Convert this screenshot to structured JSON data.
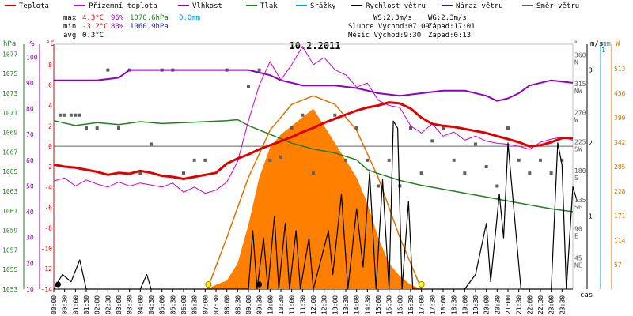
{
  "chart_data": {
    "type": "line",
    "title": "10.2.2011",
    "legend": [
      {
        "name": "Teplota",
        "color": "#e00000"
      },
      {
        "name": "Přízemní teplota",
        "color": "#d000d0"
      },
      {
        "name": "Vlhkost",
        "color": "#9000c0"
      },
      {
        "name": "Tlak",
        "color": "#208020"
      },
      {
        "name": "Srážky",
        "color": "#00a0d0"
      },
      {
        "name": "Rychlost větru",
        "color": "#000000"
      },
      {
        "name": "Náraz větru",
        "color": "#2020a0"
      },
      {
        "name": "Směr větru",
        "color": "#606060"
      }
    ],
    "stats": {
      "max_label": "max",
      "min_label": "min",
      "avg_label": "avg",
      "max_temp": "4.3°C",
      "max_hum": "96%",
      "max_press": "1070.6hPa",
      "max_rain": "0.0mm",
      "min_temp": "-3.2°C",
      "min_hum": "83%",
      "min_press": "1060.9hPa",
      "avg_temp": "0.3°C",
      "ws": "WS:2.3m/s",
      "wg": "WG:2.3m/s",
      "sun": "Slunce Východ:07:09",
      "sun_set": "Západ:17:01",
      "moon": "Měsíc  Východ:9:30",
      "moon_set": "Západ:0:13"
    },
    "axes": {
      "hpa_label": "hPa",
      "pct_label": "%",
      "degc_label": "°C",
      "deg_label": "°",
      "ms_label": "m/s",
      "mm_label": "mm",
      "w_label": "W",
      "x_label": "čas",
      "hpa_ticks": [
        "1077",
        "1075",
        "1073",
        "1071",
        "1069",
        "1067",
        "1065",
        "1063",
        "1061",
        "1059",
        "1057",
        "1055",
        "1053"
      ],
      "pct_ticks": [
        "100",
        "90",
        "80",
        "70",
        "60",
        "50",
        "40",
        "30",
        "20",
        "10"
      ],
      "degc_ticks": [
        "8",
        "6",
        "4",
        "2",
        "0",
        "-2",
        "-4",
        "-6",
        "-8",
        "-10",
        "-12",
        "-14"
      ],
      "dir_ticks": [
        {
          "deg": "360",
          "dir": "N"
        },
        {
          "deg": "315",
          "dir": "NW"
        },
        {
          "deg": "270",
          "dir": "W"
        },
        {
          "deg": "225",
          "dir": "SW"
        },
        {
          "deg": "180",
          "dir": "S"
        },
        {
          "deg": "135",
          "dir": "SE"
        },
        {
          "deg": "90",
          "dir": "E"
        },
        {
          "deg": "45",
          "dir": "NE"
        }
      ],
      "ms_ticks": [
        "3",
        "2",
        "1"
      ],
      "mm_ticks": [
        "1"
      ],
      "w_ticks": [
        "513",
        "456",
        "399",
        "342",
        "285",
        "228",
        "171",
        "114",
        "57"
      ],
      "time_ticks": [
        "00:00",
        "00:30",
        "01:00",
        "01:30",
        "02:00",
        "02:30",
        "03:00",
        "03:30",
        "04:00",
        "04:30",
        "05:00",
        "05:30",
        "06:00",
        "06:30",
        "07:00",
        "07:30",
        "08:00",
        "08:30",
        "09:00",
        "09:30",
        "10:00",
        "10:30",
        "11:00",
        "11:30",
        "12:00",
        "12:30",
        "13:00",
        "13:30",
        "14:00",
        "14:30",
        "15:00",
        "15:30",
        "16:00",
        "16:30",
        "17:00",
        "17:30",
        "18:00",
        "18:30",
        "19:00",
        "19:30",
        "20:00",
        "20:30",
        "21:00",
        "21:30",
        "22:00",
        "22:30",
        "23:00",
        "23:30"
      ],
      "temp_range": [
        -14,
        10
      ],
      "hum_range": [
        10,
        105
      ],
      "press_range": [
        1053,
        1078
      ],
      "wind_range": [
        0,
        3.35
      ],
      "solar_range": [
        0,
        570
      ]
    },
    "temperature": [
      [
        0,
        -1.8
      ],
      [
        0.5,
        -2
      ],
      [
        1,
        -2.1
      ],
      [
        1.5,
        -2.3
      ],
      [
        2,
        -2.5
      ],
      [
        2.5,
        -2.8
      ],
      [
        3,
        -2.6
      ],
      [
        3.5,
        -2.7
      ],
      [
        4,
        -2.4
      ],
      [
        4.5,
        -2.6
      ],
      [
        5,
        -2.9
      ],
      [
        5.5,
        -3.0
      ],
      [
        6,
        -3.2
      ],
      [
        6.5,
        -3.0
      ],
      [
        7,
        -2.8
      ],
      [
        7.5,
        -2.6
      ],
      [
        8,
        -1.7
      ],
      [
        8.5,
        -1.2
      ],
      [
        9,
        -0.8
      ],
      [
        9.5,
        -0.3
      ],
      [
        10,
        0.1
      ],
      [
        10.5,
        0.5
      ],
      [
        11,
        0.9
      ],
      [
        11.5,
        1.4
      ],
      [
        12,
        1.8
      ],
      [
        12.5,
        2.3
      ],
      [
        13,
        2.7
      ],
      [
        13.5,
        3.1
      ],
      [
        14,
        3.5
      ],
      [
        14.5,
        3.8
      ],
      [
        15,
        4.0
      ],
      [
        15.5,
        4.3
      ],
      [
        16,
        4.2
      ],
      [
        16.5,
        3.7
      ],
      [
        17,
        2.8
      ],
      [
        17.5,
        2.2
      ],
      [
        18,
        2.0
      ],
      [
        18.5,
        1.9
      ],
      [
        19,
        1.7
      ],
      [
        19.5,
        1.5
      ],
      [
        20,
        1.3
      ],
      [
        20.5,
        1.0
      ],
      [
        21,
        0.7
      ],
      [
        21.5,
        0.4
      ],
      [
        22,
        0.0
      ],
      [
        22.5,
        0.1
      ],
      [
        23,
        0.4
      ],
      [
        23.5,
        0.8
      ],
      [
        24,
        0.8
      ]
    ],
    "ground_temperature": [
      [
        0,
        -3.4
      ],
      [
        0.5,
        -3.1
      ],
      [
        1,
        -3.9
      ],
      [
        1.5,
        -3.3
      ],
      [
        2,
        -3.7
      ],
      [
        2.5,
        -4.0
      ],
      [
        3,
        -3.5
      ],
      [
        3.5,
        -3.9
      ],
      [
        4,
        -3.6
      ],
      [
        4.5,
        -3.8
      ],
      [
        5,
        -4.0
      ],
      [
        5.5,
        -3.6
      ],
      [
        6,
        -4.5
      ],
      [
        6.5,
        -4.0
      ],
      [
        7,
        -4.6
      ],
      [
        7.5,
        -4.3
      ],
      [
        8,
        -3.5
      ],
      [
        8.5,
        -1.5
      ],
      [
        9,
        2.5
      ],
      [
        9.5,
        6.0
      ],
      [
        10,
        8.3
      ],
      [
        10.5,
        6.5
      ],
      [
        11,
        8.0
      ],
      [
        11.5,
        9.8
      ],
      [
        12,
        8.0
      ],
      [
        12.5,
        8.7
      ],
      [
        13,
        7.5
      ],
      [
        13.5,
        7.0
      ],
      [
        14,
        5.8
      ],
      [
        14.5,
        6.2
      ],
      [
        15,
        4.5
      ],
      [
        15.5,
        4.0
      ],
      [
        16,
        3.8
      ],
      [
        16.5,
        2.0
      ],
      [
        17,
        1.3
      ],
      [
        17.5,
        2.2
      ],
      [
        18,
        1.0
      ],
      [
        18.5,
        1.4
      ],
      [
        19,
        0.6
      ],
      [
        19.5,
        1.0
      ],
      [
        20,
        0.5
      ],
      [
        20.5,
        0.3
      ],
      [
        21,
        0.2
      ],
      [
        21.5,
        0.0
      ],
      [
        22,
        -0.3
      ],
      [
        22.5,
        0.4
      ],
      [
        23,
        0.7
      ],
      [
        23.5,
        0.9
      ],
      [
        24,
        0.6
      ]
    ],
    "humidity": [
      [
        0,
        91
      ],
      [
        1,
        91
      ],
      [
        2,
        91
      ],
      [
        3,
        92
      ],
      [
        3.5,
        95
      ],
      [
        4,
        95
      ],
      [
        5,
        95
      ],
      [
        6,
        95
      ],
      [
        7,
        95
      ],
      [
        8,
        95
      ],
      [
        9,
        95
      ],
      [
        9.5,
        94
      ],
      [
        10,
        93
      ],
      [
        10.5,
        91
      ],
      [
        11,
        90
      ],
      [
        11.5,
        89
      ],
      [
        12,
        89
      ],
      [
        13,
        89
      ],
      [
        14,
        88
      ],
      [
        15,
        86
      ],
      [
        16,
        85
      ],
      [
        17,
        86
      ],
      [
        18,
        87
      ],
      [
        19,
        87
      ],
      [
        20,
        85
      ],
      [
        20.5,
        83
      ],
      [
        21,
        84
      ],
      [
        21.5,
        86
      ],
      [
        22,
        89
      ],
      [
        23,
        91
      ],
      [
        24,
        90
      ]
    ],
    "pressure": [
      [
        0,
        1070.2
      ],
      [
        1,
        1069.7
      ],
      [
        2,
        1070.0
      ],
      [
        3,
        1069.8
      ],
      [
        4,
        1070.1
      ],
      [
        5,
        1069.9
      ],
      [
        6,
        1070.0
      ],
      [
        7,
        1070.1
      ],
      [
        8,
        1070.2
      ],
      [
        8.5,
        1070.3
      ],
      [
        9,
        1069.7
      ],
      [
        10,
        1068.8
      ],
      [
        11,
        1067.9
      ],
      [
        12,
        1067.3
      ],
      [
        13,
        1066.9
      ],
      [
        14,
        1066.2
      ],
      [
        14.5,
        1065.2
      ],
      [
        15,
        1064.8
      ],
      [
        16,
        1064.1
      ],
      [
        17,
        1063.6
      ],
      [
        18,
        1063.2
      ],
      [
        19,
        1062.8
      ],
      [
        20,
        1062.4
      ],
      [
        21,
        1062.0
      ],
      [
        22,
        1061.6
      ],
      [
        23,
        1061.2
      ],
      [
        24,
        1060.9
      ]
    ],
    "wind_speed": [
      [
        0,
        0
      ],
      [
        0.4,
        0.2
      ],
      [
        0.8,
        0.1
      ],
      [
        1.2,
        0.4
      ],
      [
        1.5,
        0
      ],
      [
        4,
        0
      ],
      [
        4.3,
        0.2
      ],
      [
        4.5,
        0
      ],
      [
        9,
        0
      ],
      [
        9.2,
        0.8
      ],
      [
        9.4,
        0
      ],
      [
        9.7,
        0.7
      ],
      [
        9.9,
        0
      ],
      [
        10.2,
        1.0
      ],
      [
        10.4,
        0
      ],
      [
        10.7,
        0.9
      ],
      [
        10.9,
        0
      ],
      [
        11.2,
        0.8
      ],
      [
        11.4,
        0
      ],
      [
        11.8,
        0.7
      ],
      [
        12,
        0
      ],
      [
        12.7,
        0.8
      ],
      [
        12.9,
        0.2
      ],
      [
        13.3,
        1.3
      ],
      [
        13.6,
        0
      ],
      [
        14,
        1.1
      ],
      [
        14.3,
        0.3
      ],
      [
        14.6,
        1.6
      ],
      [
        14.9,
        0
      ],
      [
        15.2,
        1.5
      ],
      [
        15.5,
        0
      ],
      [
        15.7,
        2.3
      ],
      [
        15.9,
        2.2
      ],
      [
        16.1,
        0
      ],
      [
        16.4,
        1.2
      ],
      [
        16.6,
        0
      ],
      [
        19,
        0
      ],
      [
        19.5,
        0.2
      ],
      [
        20,
        0.9
      ],
      [
        20.2,
        0.1
      ],
      [
        20.6,
        1.3
      ],
      [
        20.8,
        0.7
      ],
      [
        21,
        2.0
      ],
      [
        21.3,
        1.0
      ],
      [
        21.6,
        0
      ],
      [
        23,
        0
      ],
      [
        23.3,
        2.0
      ],
      [
        23.5,
        1.7
      ],
      [
        23.7,
        0
      ],
      [
        24,
        1.4
      ],
      [
        24.2,
        1.2
      ]
    ],
    "wind_direction": [
      [
        0.3,
        270
      ],
      [
        0.5,
        270
      ],
      [
        0.8,
        270
      ],
      [
        1.0,
        270
      ],
      [
        1.2,
        270
      ],
      [
        1.5,
        250
      ],
      [
        2.0,
        250
      ],
      [
        2.5,
        340
      ],
      [
        3.0,
        250
      ],
      [
        3.5,
        340
      ],
      [
        4.0,
        180
      ],
      [
        4.5,
        225
      ],
      [
        5.0,
        340
      ],
      [
        5.5,
        340
      ],
      [
        6.0,
        180
      ],
      [
        6.5,
        200
      ],
      [
        7.0,
        200
      ],
      [
        8.0,
        340
      ],
      [
        9.0,
        315
      ],
      [
        9.5,
        340
      ],
      [
        10.0,
        200
      ],
      [
        10.5,
        205
      ],
      [
        11.0,
        250
      ],
      [
        11.5,
        270
      ],
      [
        12.0,
        180
      ],
      [
        13.0,
        270
      ],
      [
        13.5,
        200
      ],
      [
        14.0,
        250
      ],
      [
        14.5,
        200
      ],
      [
        15.0,
        160
      ],
      [
        15.5,
        200
      ],
      [
        16.0,
        160
      ],
      [
        16.5,
        250
      ],
      [
        17.0,
        180
      ],
      [
        17.5,
        230
      ],
      [
        18.0,
        250
      ],
      [
        18.5,
        200
      ],
      [
        19.0,
        180
      ],
      [
        19.5,
        225
      ],
      [
        20.0,
        190
      ],
      [
        20.5,
        160
      ],
      [
        21.0,
        250
      ],
      [
        21.5,
        200
      ],
      [
        22.0,
        180
      ],
      [
        22.5,
        200
      ],
      [
        23.0,
        180
      ],
      [
        23.5,
        200
      ]
    ],
    "solar_radiation": [
      [
        7.1,
        0
      ],
      [
        7.5,
        10
      ],
      [
        8,
        20
      ],
      [
        8.5,
        60
      ],
      [
        9,
        150
      ],
      [
        9.5,
        260
      ],
      [
        10,
        330
      ],
      [
        10.5,
        360
      ],
      [
        11,
        380
      ],
      [
        11.5,
        400
      ],
      [
        12,
        420
      ],
      [
        12.5,
        380
      ],
      [
        13,
        340
      ],
      [
        13.5,
        300
      ],
      [
        14,
        260
      ],
      [
        14.5,
        200
      ],
      [
        15,
        120
      ],
      [
        15.5,
        60
      ],
      [
        16,
        30
      ],
      [
        16.5,
        10
      ],
      [
        17,
        0
      ]
    ],
    "solar_theoretical": [
      [
        7.1,
        0
      ],
      [
        8,
        120
      ],
      [
        9,
        260
      ],
      [
        10,
        370
      ],
      [
        11,
        430
      ],
      [
        12,
        450
      ],
      [
        13,
        430
      ],
      [
        14,
        370
      ],
      [
        15,
        260
      ],
      [
        16,
        120
      ],
      [
        17,
        0
      ]
    ],
    "sun_markers": [
      {
        "t": 7.15,
        "kind": "sunrise"
      },
      {
        "t": 17.0,
        "kind": "sunset"
      }
    ],
    "moon_markers": [
      {
        "t": 0.2,
        "kind": "moonset"
      },
      {
        "t": 9.5,
        "kind": "moonrise"
      }
    ]
  }
}
